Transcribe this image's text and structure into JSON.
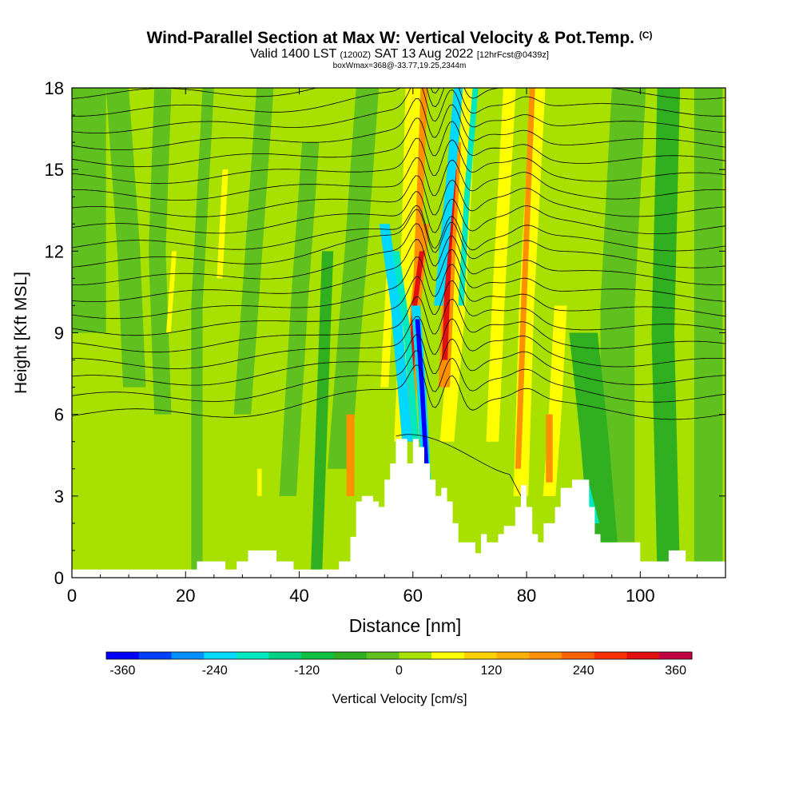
{
  "title": {
    "main": "Wind-Parallel Section at Max W: Vertical Velocity & Pot.Temp.",
    "mark": "(C)",
    "valid_pre": "Valid 1400 LST",
    "valid_z": "(1200Z)",
    "valid_date": "SAT 13 Aug 2022",
    "valid_fcst": "[12hrFcst@0439z]",
    "box": "boxWmax=368@-33.77,19.25,2344m"
  },
  "chart_data": {
    "type": "heatmap",
    "xlabel": "Distance [nm]",
    "ylabel": "Height [Kft MSL]",
    "xlim": [
      0,
      115
    ],
    "ylim": [
      0,
      18
    ],
    "xticks": [
      0,
      20,
      40,
      60,
      80,
      100
    ],
    "yticks": [
      0,
      3,
      6,
      9,
      12,
      15,
      18
    ],
    "colorbar": {
      "label": "Vertical Velocity [cm/s]",
      "ticks": [
        -360,
        -240,
        -120,
        0,
        120,
        240,
        360
      ],
      "colors": [
        "#0000ff",
        "#0040ff",
        "#0090ff",
        "#00d8ff",
        "#00e8c0",
        "#00d080",
        "#10c040",
        "#30b020",
        "#60c020",
        "#a8e000",
        "#ffff00",
        "#ffd000",
        "#ffb000",
        "#ff9000",
        "#ff6000",
        "#ff3000",
        "#e01010",
        "#c00040"
      ]
    },
    "features": {
      "max_updraft_cm_s": 368,
      "max_updraft_distance_nm": 66,
      "max_updraft_height_kft": 7.7,
      "main_downdraft_distance_nm": 60,
      "terrain_peaks_kft": [
        [
          60,
          5.1
        ],
        [
          72,
          2.4
        ],
        [
          80,
          3.4
        ],
        [
          88,
          3.6
        ]
      ]
    }
  }
}
